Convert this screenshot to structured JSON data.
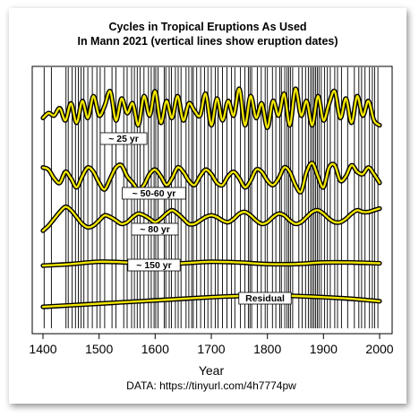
{
  "chart_data": {
    "type": "line",
    "title": [
      "Cycles in Tropical Eruptions As Used",
      "In Mann 2021 (vertical lines show eruption dates)"
    ],
    "xlabel": "Year",
    "ylabel": "",
    "xlim": [
      1400,
      2000
    ],
    "xticks": [
      1400,
      1500,
      1600,
      1700,
      1800,
      1900,
      2000
    ],
    "source_note": "DATA: https://tinyurl.com/4h7774pw",
    "line_colors": {
      "core": "#f2e600",
      "outline": "#000000",
      "eruption_marker": "#000000"
    },
    "eruption_years": [
      1402,
      1415,
      1441,
      1445,
      1452,
      1458,
      1463,
      1468,
      1473,
      1480,
      1488,
      1496,
      1502,
      1510,
      1523,
      1530,
      1544,
      1550,
      1558,
      1563,
      1568,
      1573,
      1580,
      1588,
      1593,
      1598,
      1601,
      1605,
      1616,
      1619,
      1625,
      1629,
      1636,
      1641,
      1646,
      1655,
      1660,
      1665,
      1668,
      1674,
      1681,
      1688,
      1694,
      1700,
      1707,
      1712,
      1720,
      1728,
      1736,
      1742,
      1752,
      1760,
      1766,
      1769,
      1772,
      1782,
      1789,
      1796,
      1800,
      1809,
      1815,
      1822,
      1825,
      1831,
      1835,
      1838,
      1841,
      1845,
      1856,
      1862,
      1868,
      1873,
      1877,
      1880,
      1883,
      1886,
      1889,
      1892,
      1896,
      1902,
      1907,
      1912,
      1920,
      1925,
      1932,
      1943,
      1955,
      1963,
      1968,
      1974,
      1982,
      1987,
      1991,
      1997
    ],
    "series": [
      {
        "name": "~ 25 yr",
        "x": [
          1400,
          1410,
          1420,
          1430,
          1440,
          1450,
          1460,
          1470,
          1480,
          1490,
          1500,
          1510,
          1520,
          1530,
          1540,
          1550,
          1560,
          1570,
          1580,
          1590,
          1600,
          1610,
          1620,
          1630,
          1640,
          1650,
          1660,
          1670,
          1680,
          1690,
          1700,
          1710,
          1720,
          1730,
          1740,
          1750,
          1760,
          1770,
          1780,
          1790,
          1800,
          1810,
          1820,
          1830,
          1840,
          1850,
          1860,
          1870,
          1880,
          1890,
          1900,
          1910,
          1920,
          1930,
          1940,
          1950,
          1960,
          1970,
          1980,
          1990,
          2000
        ],
        "y": [
          0.25,
          0.35,
          0.3,
          0.45,
          0.2,
          0.55,
          0.15,
          0.6,
          0.25,
          0.7,
          0.3,
          0.5,
          0.8,
          0.2,
          0.65,
          0.35,
          0.55,
          0.1,
          0.7,
          0.3,
          0.8,
          0.15,
          0.6,
          0.25,
          0.7,
          0.2,
          0.55,
          0.4,
          0.3,
          0.75,
          0.1,
          0.65,
          0.2,
          0.6,
          0.3,
          0.85,
          0.1,
          0.7,
          0.25,
          0.55,
          0.05,
          0.6,
          0.3,
          0.75,
          0.1,
          0.85,
          0.3,
          0.6,
          0.1,
          0.7,
          0.2,
          0.55,
          0.8,
          0.25,
          0.65,
          0.15,
          0.7,
          0.3,
          0.6,
          0.2,
          0.1
        ]
      },
      {
        "name": "~ 50-60 yr",
        "x": [
          1400,
          1410,
          1420,
          1430,
          1440,
          1450,
          1460,
          1470,
          1480,
          1490,
          1500,
          1510,
          1520,
          1530,
          1540,
          1550,
          1560,
          1570,
          1580,
          1590,
          1600,
          1610,
          1620,
          1630,
          1640,
          1650,
          1660,
          1670,
          1680,
          1690,
          1700,
          1710,
          1720,
          1730,
          1740,
          1750,
          1760,
          1770,
          1780,
          1790,
          1800,
          1810,
          1820,
          1830,
          1840,
          1850,
          1860,
          1870,
          1880,
          1890,
          1900,
          1910,
          1920,
          1930,
          1940,
          1950,
          1960,
          1970,
          1980,
          1990,
          2000
        ],
        "y": [
          0.7,
          0.65,
          0.45,
          0.35,
          0.6,
          0.45,
          0.25,
          0.5,
          0.7,
          0.6,
          0.35,
          0.2,
          0.45,
          0.7,
          0.75,
          0.5,
          0.35,
          0.2,
          0.3,
          0.55,
          0.65,
          0.5,
          0.3,
          0.45,
          0.7,
          0.6,
          0.4,
          0.3,
          0.5,
          0.65,
          0.55,
          0.35,
          0.3,
          0.5,
          0.6,
          0.45,
          0.25,
          0.4,
          0.65,
          0.6,
          0.4,
          0.3,
          0.45,
          0.7,
          0.6,
          0.3,
          0.15,
          0.6,
          0.8,
          0.5,
          0.25,
          0.7,
          0.75,
          0.4,
          0.5,
          0.75,
          0.6,
          0.55,
          0.7,
          0.55,
          0.35
        ]
      },
      {
        "name": "~ 80 yr",
        "x": [
          1400,
          1410,
          1420,
          1430,
          1440,
          1450,
          1460,
          1470,
          1480,
          1490,
          1500,
          1510,
          1520,
          1530,
          1540,
          1550,
          1560,
          1570,
          1580,
          1590,
          1600,
          1610,
          1620,
          1630,
          1640,
          1650,
          1660,
          1670,
          1680,
          1690,
          1700,
          1710,
          1720,
          1730,
          1740,
          1750,
          1760,
          1770,
          1780,
          1790,
          1800,
          1810,
          1820,
          1830,
          1840,
          1850,
          1860,
          1870,
          1880,
          1890,
          1900,
          1910,
          1920,
          1930,
          1940,
          1950,
          1960,
          1970,
          1980,
          1990,
          2000
        ],
        "y": [
          0.1,
          0.25,
          0.45,
          0.65,
          0.8,
          0.7,
          0.5,
          0.3,
          0.2,
          0.25,
          0.4,
          0.55,
          0.5,
          0.4,
          0.3,
          0.35,
          0.5,
          0.6,
          0.55,
          0.45,
          0.35,
          0.45,
          0.6,
          0.7,
          0.6,
          0.45,
          0.3,
          0.3,
          0.4,
          0.5,
          0.55,
          0.5,
          0.4,
          0.35,
          0.45,
          0.6,
          0.65,
          0.55,
          0.4,
          0.3,
          0.35,
          0.5,
          0.6,
          0.55,
          0.4,
          0.3,
          0.35,
          0.5,
          0.65,
          0.7,
          0.6,
          0.45,
          0.35,
          0.35,
          0.45,
          0.6,
          0.7,
          0.65,
          0.65,
          0.7,
          0.75
        ]
      },
      {
        "name": "~ 150 yr",
        "x": [
          1400,
          1450,
          1500,
          1550,
          1600,
          1650,
          1700,
          1750,
          1800,
          1850,
          1900,
          1950,
          2000
        ],
        "y": [
          0.35,
          0.45,
          0.6,
          0.55,
          0.45,
          0.5,
          0.6,
          0.55,
          0.45,
          0.45,
          0.55,
          0.55,
          0.5
        ]
      },
      {
        "name": "Residual",
        "x": [
          1400,
          1450,
          1500,
          1550,
          1600,
          1650,
          1700,
          1750,
          1800,
          1850,
          1900,
          1950,
          2000
        ],
        "y": [
          0.05,
          0.15,
          0.25,
          0.35,
          0.45,
          0.55,
          0.65,
          0.72,
          0.75,
          0.72,
          0.65,
          0.55,
          0.4
        ]
      }
    ]
  }
}
